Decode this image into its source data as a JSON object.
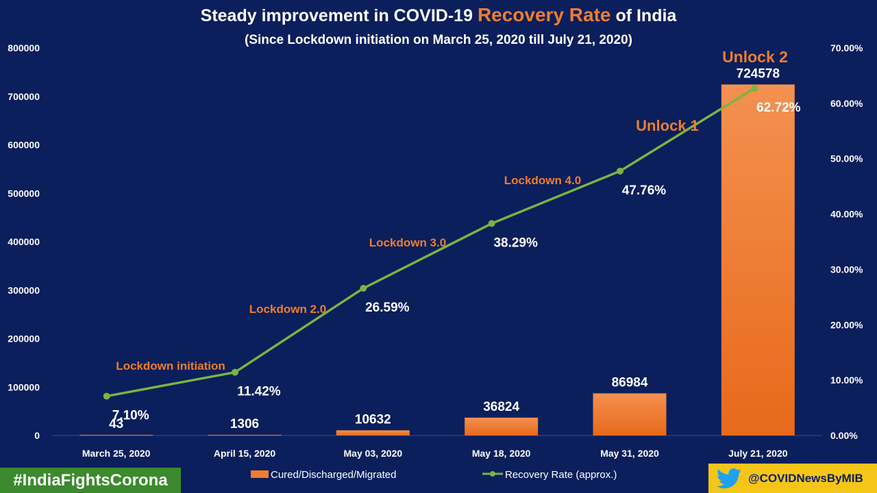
{
  "title": {
    "part1": "Steady  improvement  in COVID-19 ",
    "highlight": "Recovery Rate",
    "part2": "  of  India"
  },
  "subtitle": "(Since  Lockdown initiation on March 25, 2020  till July 21, 2020)",
  "chart_data": {
    "type": "bar",
    "categories": [
      "March 25, 2020",
      "April 15, 2020",
      "May 03, 2020",
      "May 18, 2020",
      "May 31, 2020",
      "July 21, 2020"
    ],
    "series": [
      {
        "name": "Cured/Discharged/Migrated",
        "type": "bar",
        "axis": "left",
        "values": [
          43,
          1306,
          10632,
          36824,
          86984,
          724578
        ],
        "labels": [
          "43",
          "1306",
          "10632",
          "36824",
          "86984",
          "724578"
        ]
      },
      {
        "name": "Recovery Rate (approx.)",
        "type": "line",
        "axis": "right",
        "values": [
          7.1,
          11.42,
          26.59,
          38.29,
          47.76,
          62.72
        ],
        "labels": [
          "7.10%",
          "11.42%",
          "26.59%",
          "38.29%",
          "47.76%",
          "62.72%"
        ]
      }
    ],
    "y_left": {
      "min": 0,
      "max": 800000,
      "ticks": [
        "0",
        "100000",
        "200000",
        "300000",
        "400000",
        "500000",
        "600000",
        "700000",
        "800000"
      ]
    },
    "y_right": {
      "min": 0,
      "max": 70,
      "ticks": [
        "0.00%",
        "10.00%",
        "20.00%",
        "30.00%",
        "40.00%",
        "50.00%",
        "60.00%",
        "70.00%"
      ]
    },
    "phase_annotations": [
      "Lockdown initiation",
      "Lockdown 2.0",
      "Lockdown 3.0",
      "Lockdown 4.0",
      "Unlock 1",
      "Unlock 2"
    ],
    "legend": [
      "Cured/Discharged/Migrated",
      "Recovery Rate (approx.)"
    ]
  },
  "colors": {
    "background": "#0b1f5c",
    "bar": "#f07d2e",
    "line": "#7cb342",
    "annotation": "#f07d2e",
    "text": "#ffffff"
  },
  "footer": {
    "hashtag": "#IndiaFightsCorona",
    "handle": "@COVIDNewsByMIB",
    "handle_icon": "twitter-bird-icon"
  }
}
